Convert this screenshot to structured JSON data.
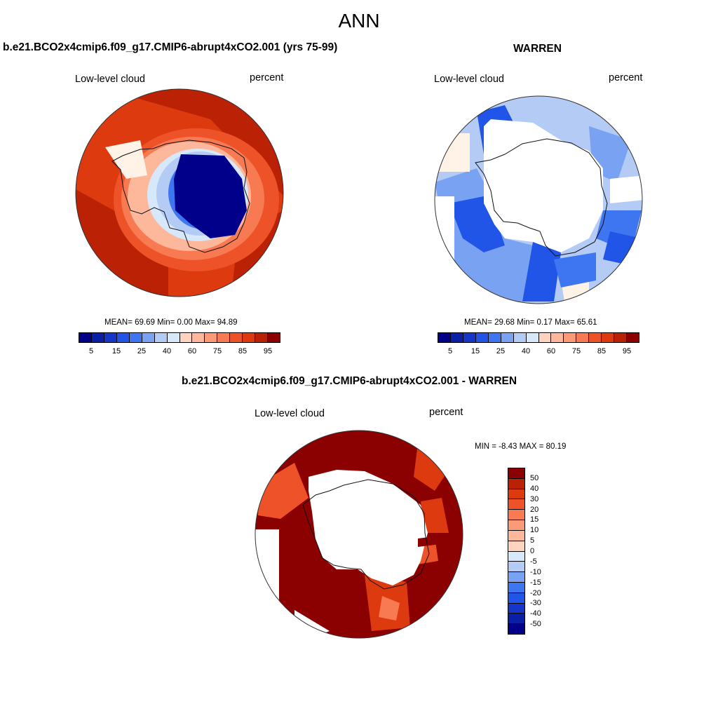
{
  "title": "ANN",
  "palette": [
    "#00008b",
    "#0a1fa8",
    "#1536c8",
    "#2155e8",
    "#3d76f0",
    "#7aa2f2",
    "#b4cbf6",
    "#d8e8fb",
    "#fff2e6",
    "#ffd3be",
    "#fdb79b",
    "#fb9a77",
    "#f87a52",
    "#ee5228",
    "#dd3a10",
    "#bb2205",
    "#8b0000"
  ],
  "colors": {
    "land_outline": "#111111",
    "missing": "#ffffff"
  },
  "panels": {
    "model": {
      "title": "b.e21.BCO2x4cmip6.f09_g17.CMIP6-abrupt4xCO2.001 (yrs 75-99)",
      "variable": "Low-level cloud",
      "units": "percent",
      "stats": "MEAN=  69.69  Min=   0.00  Max=  94.89",
      "colorbar_ticks": [
        "5",
        "15",
        "25",
        "40",
        "60",
        "75",
        "85",
        "95"
      ]
    },
    "obs": {
      "title": "WARREN",
      "variable": "Low-level cloud",
      "units": "percent",
      "stats": "MEAN=  29.68  Min=   0.17  Max=  65.61",
      "colorbar_ticks": [
        "5",
        "15",
        "25",
        "40",
        "60",
        "75",
        "85",
        "95"
      ]
    },
    "diff": {
      "title": "b.e21.BCO2x4cmip6.f09_g17.CMIP6-abrupt4xCO2.001 - WARREN",
      "variable": "Low-level cloud",
      "units": "percent",
      "stats": "MIN =  -8.43 MAX =  80.19",
      "colorbar_labels": [
        "50",
        "40",
        "30",
        "20",
        "15",
        "10",
        "5",
        "0",
        "-5",
        "-10",
        "-15",
        "-20",
        "-30",
        "-40",
        "-50"
      ]
    }
  }
}
